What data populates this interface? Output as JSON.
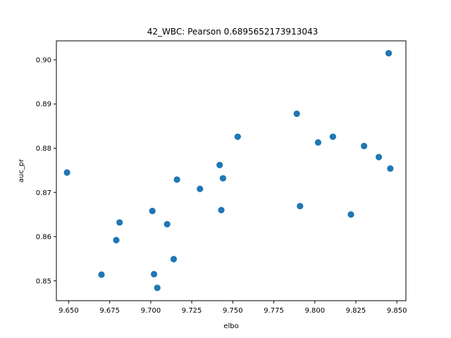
{
  "chart_data": {
    "type": "scatter",
    "title": "42_WBC: Pearson 0.6895652173913043",
    "xlabel": "elbo",
    "ylabel": "auc_pr",
    "xlim": [
      9.6425,
      9.8555
    ],
    "ylim": [
      0.8455,
      0.9043
    ],
    "xticks": [
      "9.650",
      "9.675",
      "9.700",
      "9.725",
      "9.750",
      "9.775",
      "9.800",
      "9.825",
      "9.850"
    ],
    "yticks": [
      "0.85",
      "0.86",
      "0.87",
      "0.88",
      "0.89",
      "0.90"
    ],
    "grid": false,
    "marker_color": "#1f77b4",
    "series": [
      {
        "x": [
          9.649,
          9.67,
          9.679,
          9.681,
          9.701,
          9.702,
          9.704,
          9.71,
          9.714,
          9.716,
          9.73,
          9.742,
          9.743,
          9.744,
          9.753,
          9.789,
          9.791,
          9.802,
          9.811,
          9.822,
          9.83,
          9.839,
          9.845,
          9.846
        ],
        "y": [
          0.8745,
          0.8514,
          0.8592,
          0.8632,
          0.8658,
          0.8515,
          0.8484,
          0.8628,
          0.8549,
          0.8729,
          0.8708,
          0.8762,
          0.866,
          0.8732,
          0.8826,
          0.8878,
          0.8669,
          0.8813,
          0.8826,
          0.865,
          0.8805,
          0.878,
          0.9015,
          0.8754
        ]
      }
    ]
  }
}
